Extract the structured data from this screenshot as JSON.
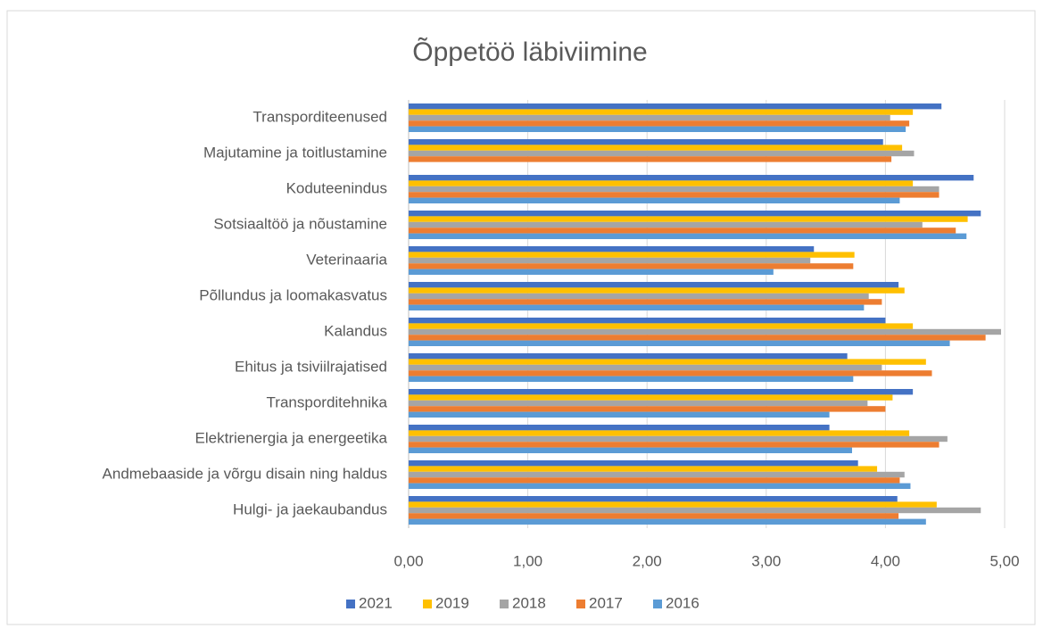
{
  "chart_data": {
    "type": "bar",
    "orientation": "horizontal",
    "title": "Õppetöö läbiviimine",
    "categories": [
      "Transporditeenused",
      "Majutamine ja toitlustamine",
      "Koduteenindus",
      "Sotsiaaltöö ja nõustamine",
      "Veterinaaria",
      "Põllundus ja loomakasvatus",
      "Kalandus",
      "Ehitus ja tsiviilrajatised",
      "Transporditehnika ",
      "Elektrienergia ja energeetika",
      "Andmebaaside ja võrgu disain ning haldus",
      "Hulgi- ja jaekaubandus"
    ],
    "series": [
      {
        "name": "2021",
        "color": "#4472c4",
        "values": [
          4.47,
          3.98,
          4.74,
          4.8,
          3.4,
          4.11,
          4.0,
          3.68,
          4.23,
          3.53,
          3.77,
          4.1
        ]
      },
      {
        "name": "2019",
        "color": "#ffc000",
        "values": [
          4.23,
          4.14,
          4.23,
          4.69,
          3.74,
          4.16,
          4.23,
          4.34,
          4.06,
          4.2,
          3.93,
          4.43
        ]
      },
      {
        "name": "2018",
        "color": "#a5a5a5",
        "values": [
          4.04,
          4.24,
          4.45,
          4.31,
          3.37,
          3.86,
          4.97,
          3.97,
          3.85,
          4.52,
          4.16,
          4.8
        ]
      },
      {
        "name": "2017",
        "color": "#ed7d31",
        "values": [
          4.2,
          4.05,
          4.45,
          4.59,
          3.73,
          3.97,
          4.84,
          4.39,
          4.0,
          4.45,
          4.12,
          4.11
        ]
      },
      {
        "name": "2016",
        "color": "#5b9bd5",
        "values": [
          4.17,
          null,
          4.12,
          4.68,
          3.06,
          3.82,
          4.54,
          3.73,
          3.53,
          3.72,
          4.21,
          4.34
        ]
      }
    ],
    "xlim": [
      0,
      5
    ],
    "xticks": [
      {
        "value": 0,
        "label": "0,00"
      },
      {
        "value": 1,
        "label": "1,00"
      },
      {
        "value": 2,
        "label": "2,00"
      },
      {
        "value": 3,
        "label": "3,00"
      },
      {
        "value": 4,
        "label": "4,00"
      },
      {
        "value": 5,
        "label": "5,00"
      }
    ],
    "grid": true,
    "legend": "bottom"
  }
}
